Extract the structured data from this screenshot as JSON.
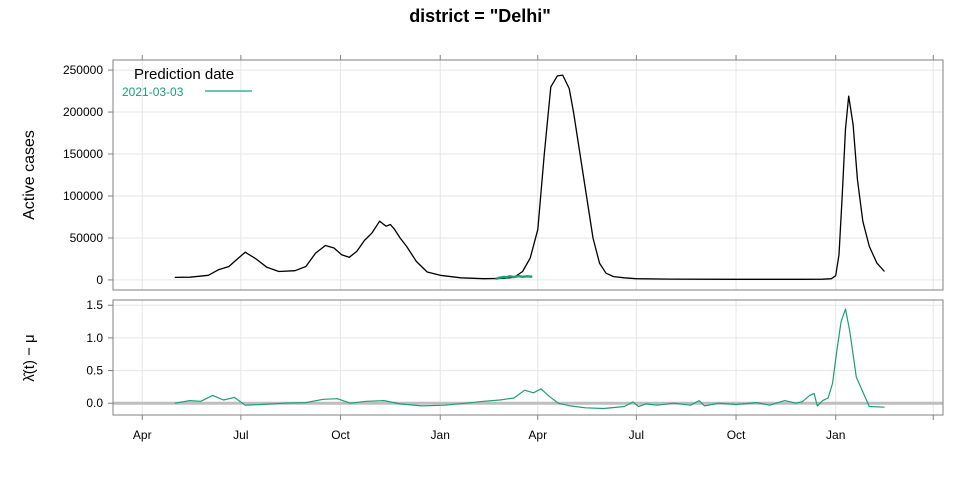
{
  "figure": {
    "title": "district = \"Delhi\"",
    "colors": {
      "active": "#000000",
      "prediction": "#1b9e77",
      "grid": "#e6e6e6",
      "frame": "#808080",
      "zero_line": "#bebebe"
    }
  },
  "chart_data": [
    {
      "type": "line",
      "panel": "top",
      "title": "district = \"Delhi\"",
      "xlabel": "",
      "ylabel": "Active cases",
      "ylim": [
        -12000,
        262000
      ],
      "yticks": [
        0,
        50000,
        100000,
        150000,
        200000,
        250000
      ],
      "ytick_labels": [
        "0",
        "50000",
        "100000",
        "150000",
        "200000",
        "250000"
      ],
      "grid": true,
      "legend": {
        "title": "Prediction date",
        "placement": "top-left",
        "entries": [
          {
            "label": "2021-03-03",
            "color": "#1b9e77"
          }
        ]
      },
      "series": [
        {
          "color": "#000000",
          "x": [
            "2020-05-01",
            "2020-05-15",
            "2020-06-01",
            "2020-06-10",
            "2020-06-20",
            "2020-06-27",
            "2020-07-05",
            "2020-07-15",
            "2020-07-25",
            "2020-08-05",
            "2020-08-20",
            "2020-08-30",
            "2020-09-08",
            "2020-09-17",
            "2020-09-25",
            "2020-10-02",
            "2020-10-09",
            "2020-10-16",
            "2020-10-23",
            "2020-10-30",
            "2020-11-06",
            "2020-11-12",
            "2020-11-16",
            "2020-11-20",
            "2020-11-25",
            "2020-12-01",
            "2020-12-10",
            "2020-12-20",
            "2021-01-01",
            "2021-01-20",
            "2021-02-10",
            "2021-03-01",
            "2021-03-10",
            "2021-03-18",
            "2021-03-25",
            "2021-04-01",
            "2021-04-07",
            "2021-04-13",
            "2021-04-19",
            "2021-04-24",
            "2021-04-30",
            "2021-05-04",
            "2021-05-10",
            "2021-05-16",
            "2021-05-22",
            "2021-05-28",
            "2021-06-03",
            "2021-06-10",
            "2021-06-20",
            "2021-07-01",
            "2021-08-01",
            "2021-10-01",
            "2021-12-01",
            "2021-12-20",
            "2021-12-28",
            "2022-01-01",
            "2022-01-04",
            "2022-01-07",
            "2022-01-10",
            "2022-01-13",
            "2022-01-17",
            "2022-01-21",
            "2022-01-26",
            "2022-02-01",
            "2022-02-08",
            "2022-02-15"
          ],
          "values": [
            3000,
            3200,
            5500,
            12000,
            16000,
            24000,
            33000,
            25000,
            15000,
            10000,
            11000,
            16000,
            32000,
            41000,
            38000,
            30000,
            27000,
            34000,
            47000,
            56000,
            70000,
            64000,
            66000,
            60000,
            50000,
            40000,
            22000,
            9500,
            5500,
            2500,
            1500,
            1800,
            3000,
            10000,
            26000,
            60000,
            150000,
            230000,
            243000,
            244000,
            228000,
            200000,
            150000,
            100000,
            50000,
            20000,
            8000,
            4000,
            2500,
            1500,
            1000,
            800,
            800,
            900,
            1500,
            5000,
            30000,
            100000,
            180000,
            219000,
            185000,
            120000,
            70000,
            40000,
            20000,
            10000
          ]
        },
        {
          "name": "2021-03-03",
          "color": "#1b9e77",
          "x": [
            "2021-02-21",
            "2021-02-25",
            "2021-03-01",
            "2021-03-03",
            "2021-03-06",
            "2021-03-10",
            "2021-03-14",
            "2021-03-18",
            "2021-03-22",
            "2021-03-27"
          ],
          "values": [
            1200,
            2600,
            3600,
            3000,
            4300,
            3400,
            4500,
            3700,
            4300,
            3900
          ]
        }
      ]
    },
    {
      "type": "line",
      "panel": "bottom",
      "xlabel": "",
      "ylabel": "λ̂(t) − μ",
      "ylim": [
        -0.18,
        1.58
      ],
      "yticks": [
        0.0,
        0.5,
        1.0,
        1.5
      ],
      "ytick_labels": [
        "0.0",
        "0.5",
        "1.0",
        "1.5"
      ],
      "xlim": [
        "2020-03-05",
        "2022-04-10"
      ],
      "xticks": [
        "2020-04-01",
        "2020-07-01",
        "2020-10-01",
        "2021-01-01",
        "2021-04-01",
        "2021-07-01",
        "2021-10-01",
        "2022-01-01",
        "2022-04-01"
      ],
      "xtick_labels": [
        "Apr",
        "Jul",
        "Oct",
        "Jan",
        "Apr",
        "Jul",
        "Oct",
        "Jan",
        ""
      ],
      "grid": true,
      "reference_line": 0,
      "series": [
        {
          "color": "#1b9e77",
          "x": [
            "2020-05-01",
            "2020-05-15",
            "2020-05-25",
            "2020-06-05",
            "2020-06-15",
            "2020-06-25",
            "2020-07-05",
            "2020-07-20",
            "2020-08-10",
            "2020-08-30",
            "2020-09-15",
            "2020-09-28",
            "2020-10-10",
            "2020-10-25",
            "2020-11-10",
            "2020-11-25",
            "2020-12-15",
            "2021-01-05",
            "2021-01-25",
            "2021-02-10",
            "2021-02-25",
            "2021-03-10",
            "2021-03-20",
            "2021-03-28",
            "2021-04-04",
            "2021-04-12",
            "2021-04-20",
            "2021-05-01",
            "2021-05-15",
            "2021-06-01",
            "2021-06-20",
            "2021-06-28",
            "2021-07-03",
            "2021-07-10",
            "2021-07-20",
            "2021-08-05",
            "2021-08-20",
            "2021-08-28",
            "2021-09-02",
            "2021-09-15",
            "2021-10-01",
            "2021-10-20",
            "2021-11-01",
            "2021-11-15",
            "2021-11-25",
            "2021-12-01",
            "2021-12-08",
            "2021-12-12",
            "2021-12-15",
            "2021-12-20",
            "2021-12-25",
            "2021-12-29",
            "2022-01-02",
            "2022-01-06",
            "2022-01-10",
            "2022-01-14",
            "2022-01-20",
            "2022-02-01",
            "2022-02-15"
          ],
          "values": [
            0.0,
            0.04,
            0.03,
            0.12,
            0.05,
            0.09,
            -0.03,
            -0.02,
            0.0,
            0.01,
            0.06,
            0.07,
            0.0,
            0.03,
            0.04,
            -0.01,
            -0.04,
            -0.03,
            0.0,
            0.03,
            0.05,
            0.08,
            0.2,
            0.16,
            0.22,
            0.1,
            0.0,
            -0.04,
            -0.07,
            -0.08,
            -0.05,
            0.02,
            -0.05,
            -0.01,
            -0.03,
            0.0,
            -0.03,
            0.04,
            -0.04,
            0.0,
            -0.02,
            0.01,
            -0.03,
            0.04,
            0.0,
            0.02,
            0.12,
            0.15,
            -0.04,
            0.04,
            0.08,
            0.3,
            0.8,
            1.25,
            1.44,
            1.1,
            0.4,
            -0.05,
            -0.06
          ]
        }
      ]
    }
  ]
}
